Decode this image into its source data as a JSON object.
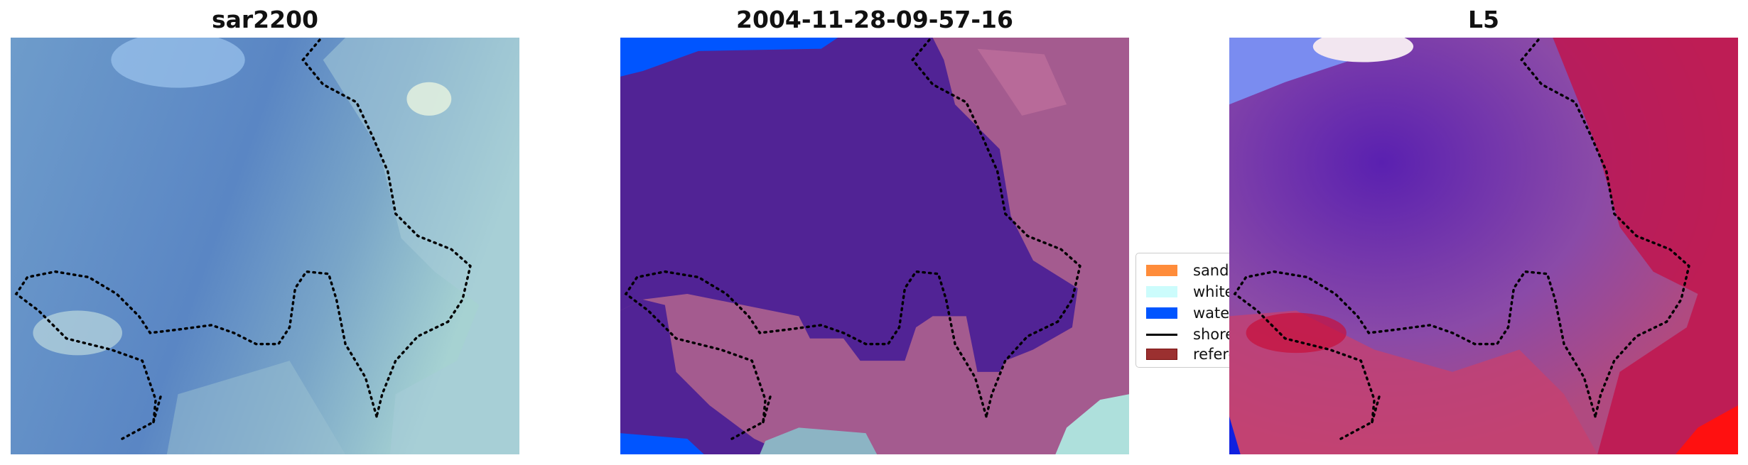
{
  "panels": [
    {
      "title": "sar2200"
    },
    {
      "title": "2004-11-28-09-57-16"
    },
    {
      "title": "L5"
    }
  ],
  "legend": {
    "items": [
      {
        "label": "sand",
        "color": "#ff8c3a",
        "kind": "patch"
      },
      {
        "label": "whitewater",
        "color": "#ccfcfc",
        "kind": "patch"
      },
      {
        "label": "water",
        "color": "#0055ff",
        "kind": "patch"
      },
      {
        "label": "shoreline",
        "color": "#000000",
        "kind": "line"
      },
      {
        "label": "reference",
        "color": "#9b3030",
        "kind": "patch"
      }
    ]
  },
  "colors": {
    "water_class": "#512395",
    "land_class": "#a45b8f",
    "index_low": "#3a0fb0",
    "index_high": "#c8002e"
  }
}
